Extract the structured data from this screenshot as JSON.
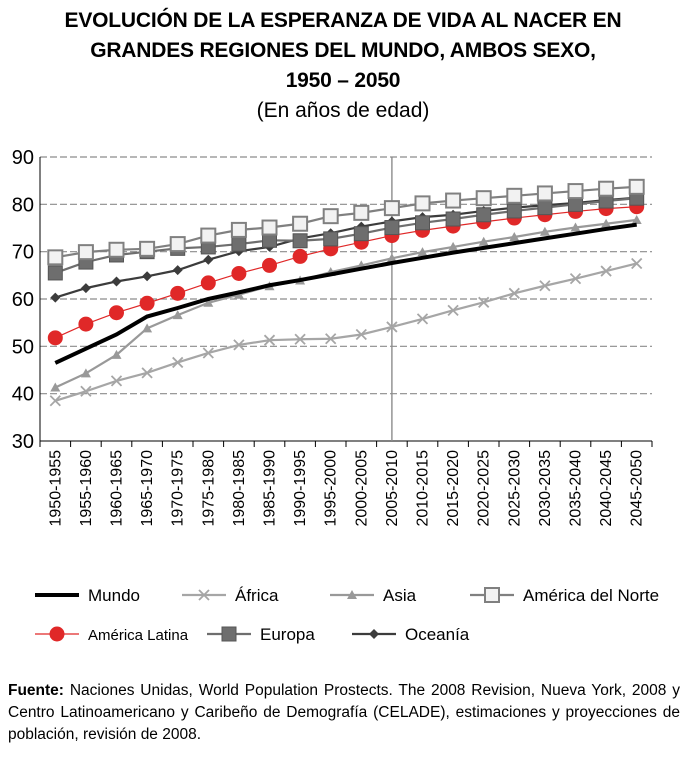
{
  "chart_data": {
    "type": "line",
    "title_lines": [
      "EVOLUCIÓN DE LA ESPERANZA DE VIDA AL NACER EN",
      "GRANDES REGIONES DEL MUNDO, AMBOS SEXO,",
      "1950 – 2050"
    ],
    "subtitle": "(En años de edad)",
    "xlabel": "",
    "ylabel": "",
    "ylim": [
      30,
      90
    ],
    "yticks": [
      30,
      40,
      50,
      60,
      70,
      80,
      90
    ],
    "grid": true,
    "legend_position": "bottom",
    "categories": [
      "1950-1955",
      "1955-1960",
      "1960-1965",
      "1965-1970",
      "1970-1975",
      "1975-1980",
      "1980-1985",
      "1985-1990",
      "1990-1995",
      "1995-2000",
      "2000-2005",
      "2005-2010",
      "2010-2015",
      "2015-2020",
      "2020-2025",
      "2025-2030",
      "2030-2035",
      "2035-2040",
      "2040-2045",
      "2045-2050"
    ],
    "reference_line_category": "2005-2010",
    "series": [
      {
        "name": "Mundo",
        "color": "#000000",
        "marker": "none",
        "values": [
          46.5,
          49.5,
          52.5,
          56.3,
          58.1,
          60.0,
          61.4,
          62.9,
          64.0,
          65.2,
          66.4,
          67.6,
          68.7,
          69.8,
          70.8,
          71.8,
          72.8,
          73.8,
          74.8,
          75.7
        ]
      },
      {
        "name": "África",
        "color": "#a6a6a6",
        "marker": "x",
        "values": [
          38.5,
          40.5,
          42.7,
          44.4,
          46.6,
          48.6,
          50.3,
          51.3,
          51.5,
          51.6,
          52.5,
          54.1,
          55.8,
          57.6,
          59.3,
          61.2,
          62.8,
          64.3,
          65.9,
          67.5
        ]
      },
      {
        "name": "Asia",
        "color": "#999999",
        "marker": "triangle",
        "values": [
          41.3,
          44.3,
          48.2,
          53.8,
          56.6,
          59.2,
          60.9,
          62.7,
          63.9,
          65.7,
          67.1,
          68.6,
          69.9,
          71.0,
          72.1,
          73.1,
          74.2,
          75.1,
          75.9,
          76.7
        ]
      },
      {
        "name": "América del Norte",
        "color": "#808080",
        "marker": "square-open",
        "values": [
          68.8,
          69.9,
          70.4,
          70.6,
          71.6,
          73.4,
          74.6,
          75.1,
          75.9,
          77.5,
          78.2,
          79.2,
          80.2,
          80.8,
          81.3,
          81.8,
          82.3,
          82.8,
          83.3,
          83.7
        ]
      },
      {
        "name": "América Latina",
        "color": "#e02828",
        "marker": "circle",
        "values": [
          51.8,
          54.7,
          57.1,
          59.1,
          61.2,
          63.4,
          65.4,
          67.1,
          69.0,
          70.6,
          72.0,
          73.4,
          74.5,
          75.4,
          76.3,
          77.1,
          77.8,
          78.5,
          79.1,
          79.5
        ]
      },
      {
        "name": "Europa",
        "color": "#6e6e6e",
        "marker": "square",
        "values": [
          65.5,
          67.8,
          69.3,
          70.0,
          70.7,
          71.0,
          71.6,
          72.4,
          72.3,
          72.7,
          73.8,
          75.1,
          76.1,
          76.9,
          77.8,
          78.6,
          79.3,
          80.0,
          80.7,
          81.3
        ]
      },
      {
        "name": "Oceanía",
        "color": "#3c3c3c",
        "marker": "diamond",
        "values": [
          60.3,
          62.3,
          63.7,
          64.8,
          66.1,
          68.3,
          70.1,
          71.0,
          72.8,
          73.9,
          75.3,
          76.4,
          77.3,
          77.8,
          78.6,
          79.3,
          79.8,
          80.3,
          80.9,
          81.4
        ]
      }
    ]
  },
  "legend": [
    {
      "name": "Mundo",
      "marker": "none",
      "color": "#000000"
    },
    {
      "name": "África",
      "marker": "x",
      "color": "#a6a6a6"
    },
    {
      "name": "Asia",
      "marker": "triangle",
      "color": "#999999"
    },
    {
      "name": "América del Norte",
      "marker": "square-open",
      "color": "#808080"
    },
    {
      "name": "América Latina",
      "marker": "circle",
      "color": "#e02828"
    },
    {
      "name": "Europa",
      "marker": "square",
      "color": "#6e6e6e"
    },
    {
      "name": "Oceanía",
      "marker": "diamond",
      "color": "#3c3c3c"
    }
  ],
  "footer": {
    "label": "Fuente:",
    "text": " Naciones Unidas, World Population Prostects. The 2008 Revision, Nueva York, 2008 y Centro Latinoamericano y Caribeño de Demografía (CELADE), estimaciones y proyecciones de población, revisión de 2008."
  }
}
